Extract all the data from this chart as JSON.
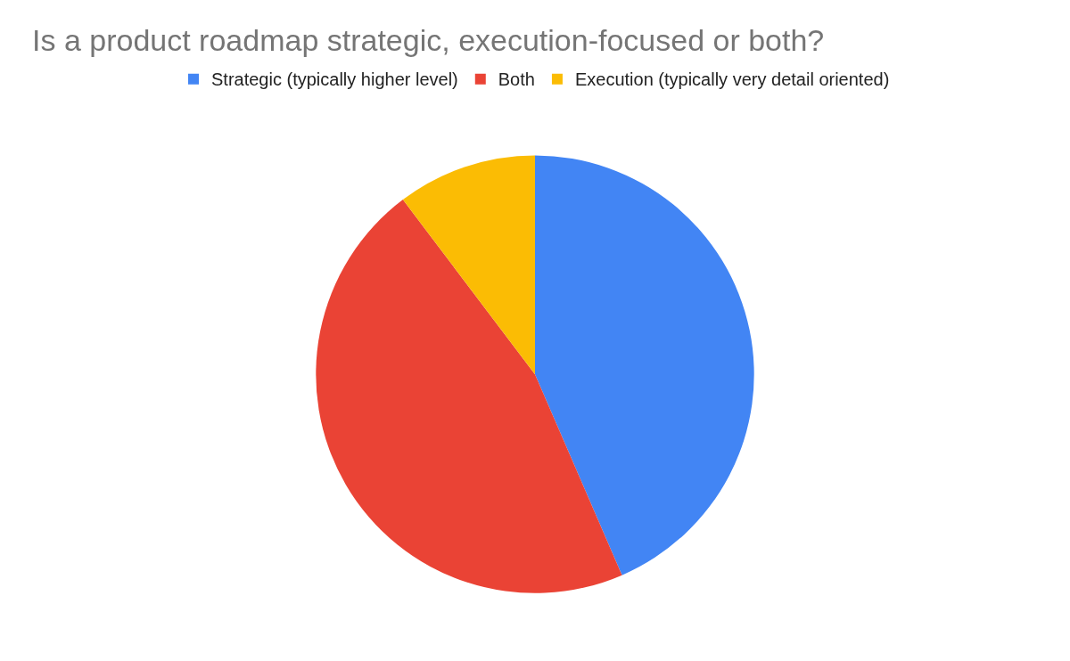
{
  "chart_data": {
    "type": "pie",
    "title": "Is a product roadmap strategic, execution-focused or both?",
    "categories": [
      "Strategic (typically higher level)",
      "Both",
      "Execution (typically very detail oriented)"
    ],
    "values": [
      43.5,
      46.2,
      10.3
    ],
    "colors": [
      "#4285f4",
      "#ea4335",
      "#fbbc04"
    ],
    "legend": "top"
  }
}
